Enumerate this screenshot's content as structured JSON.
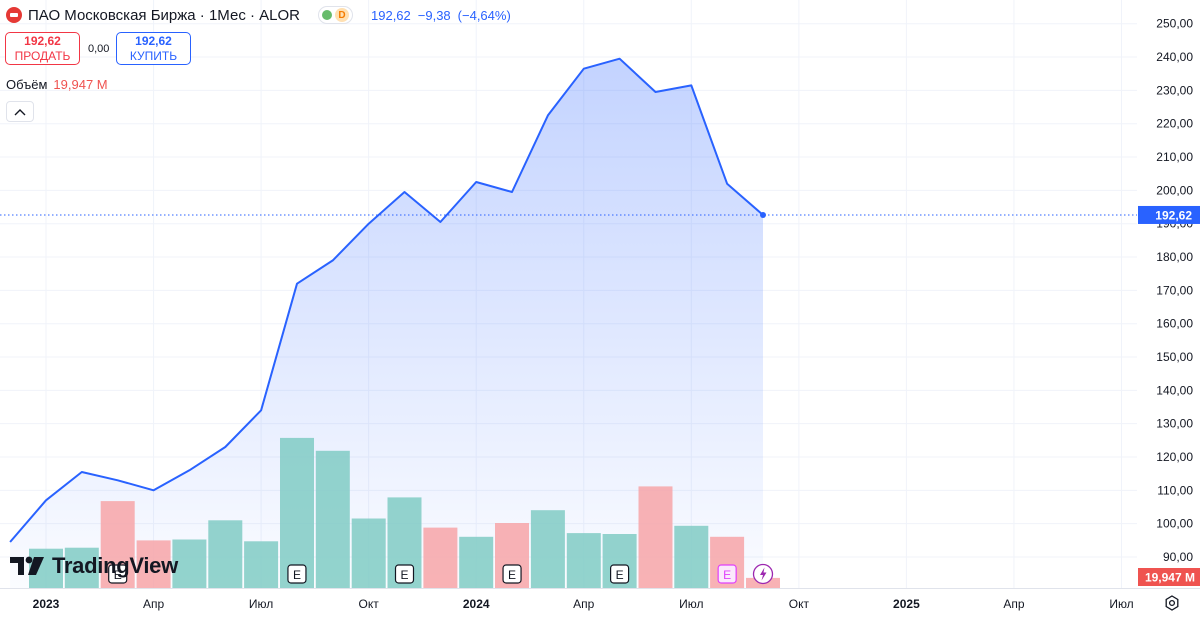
{
  "header": {
    "title": "ПАО Московская Биржа · 1Мес · ALOR",
    "status_badge": "D",
    "last": "192,62",
    "change": "−9,38",
    "change_pct": "(−4,64%)"
  },
  "trade": {
    "sell_price": "192,62",
    "sell_label": "ПРОДАТЬ",
    "spread": "0,00",
    "buy_price": "192,62",
    "buy_label": "КУПИТЬ"
  },
  "volume": {
    "label": "Объём",
    "value": "19,947 M"
  },
  "logo": {
    "text": "TradingView"
  },
  "price_label": "192,62",
  "volume_label": "19,947 M",
  "events": {
    "earnings_label": "E"
  },
  "colors": {
    "line": "#2962ff",
    "up_volume": "#80cbc4",
    "down_volume": "#f7a5a8",
    "earnings_future": "#e040fb",
    "text": "#131722",
    "grid": "#f0f3fa"
  },
  "chart_data": {
    "type": "area",
    "series": [
      {
        "name": "ПАО Московская Биржа · 1Мес · ALOR",
        "x": [
          "2022-12",
          "2023-01",
          "2023-02",
          "2023-03",
          "2023-04",
          "2023-05",
          "2023-06",
          "2023-07",
          "2023-08",
          "2023-09",
          "2023-10",
          "2023-11",
          "2023-12",
          "2024-01",
          "2024-02",
          "2024-03",
          "2024-04",
          "2024-05",
          "2024-06",
          "2024-07",
          "2024-08",
          "2024-09"
        ],
        "y": [
          94.5,
          107,
          115.5,
          113,
          110,
          116,
          123,
          134,
          172,
          179,
          190,
          199.5,
          190.5,
          202.5,
          199.5,
          222.5,
          236.5,
          239.5,
          229.5,
          231.5,
          202,
          192.62
        ]
      }
    ],
    "volume": {
      "x": [
        "2023-01",
        "2023-02",
        "2023-03",
        "2023-04",
        "2023-05",
        "2023-06",
        "2023-07",
        "2023-08",
        "2023-09",
        "2023-10",
        "2023-11",
        "2023-12",
        "2024-01",
        "2024-02",
        "2024-03",
        "2024-04",
        "2024-05",
        "2024-06",
        "2024-07",
        "2024-08",
        "2024-09"
      ],
      "values": [
        0.43,
        0.44,
        0.95,
        0.52,
        0.53,
        0.74,
        0.51,
        1.64,
        1.5,
        0.76,
        0.99,
        0.66,
        0.56,
        0.71,
        0.85,
        0.6,
        0.59,
        1.11,
        0.68,
        0.56,
        0.11
      ],
      "direction": [
        "up",
        "up",
        "down",
        "down",
        "up",
        "up",
        "up",
        "up",
        "up",
        "up",
        "up",
        "down",
        "up",
        "down",
        "up",
        "up",
        "up",
        "down",
        "up",
        "down",
        "down"
      ]
    },
    "earnings_events": [
      "2023-03",
      "2023-08",
      "2023-11",
      "2024-02",
      "2024-05",
      "2024-08"
    ],
    "dividend_event": "2024-09",
    "last_price": 192.62,
    "ylim": [
      84,
      255
    ],
    "y_ticks": [
      90,
      100,
      110,
      120,
      130,
      140,
      150,
      160,
      170,
      180,
      190,
      200,
      210,
      220,
      230,
      240,
      250
    ],
    "y_tick_labels": [
      "90,00",
      "100,00",
      "110,00",
      "120,00",
      "130,00",
      "140,00",
      "150,00",
      "160,00",
      "170,00",
      "180,00",
      "190,00",
      "200,00",
      "210,00",
      "220,00",
      "230,00",
      "240,00",
      "250,00"
    ],
    "x_ticks": [
      {
        "x": "2023-01",
        "label": "2023",
        "bold": true
      },
      {
        "x": "2023-04",
        "label": "Апр"
      },
      {
        "x": "2023-07",
        "label": "Июл"
      },
      {
        "x": "2023-10",
        "label": "Окт"
      },
      {
        "x": "2024-01",
        "label": "2024",
        "bold": true
      },
      {
        "x": "2024-04",
        "label": "Апр"
      },
      {
        "x": "2024-07",
        "label": "Июл"
      },
      {
        "x": "2024-10",
        "label": "Окт"
      },
      {
        "x": "2025-01",
        "label": "2025",
        "bold": true
      },
      {
        "x": "2025-04",
        "label": "Апр"
      },
      {
        "x": "2025-07",
        "label": "Июл"
      }
    ],
    "grid": true
  }
}
